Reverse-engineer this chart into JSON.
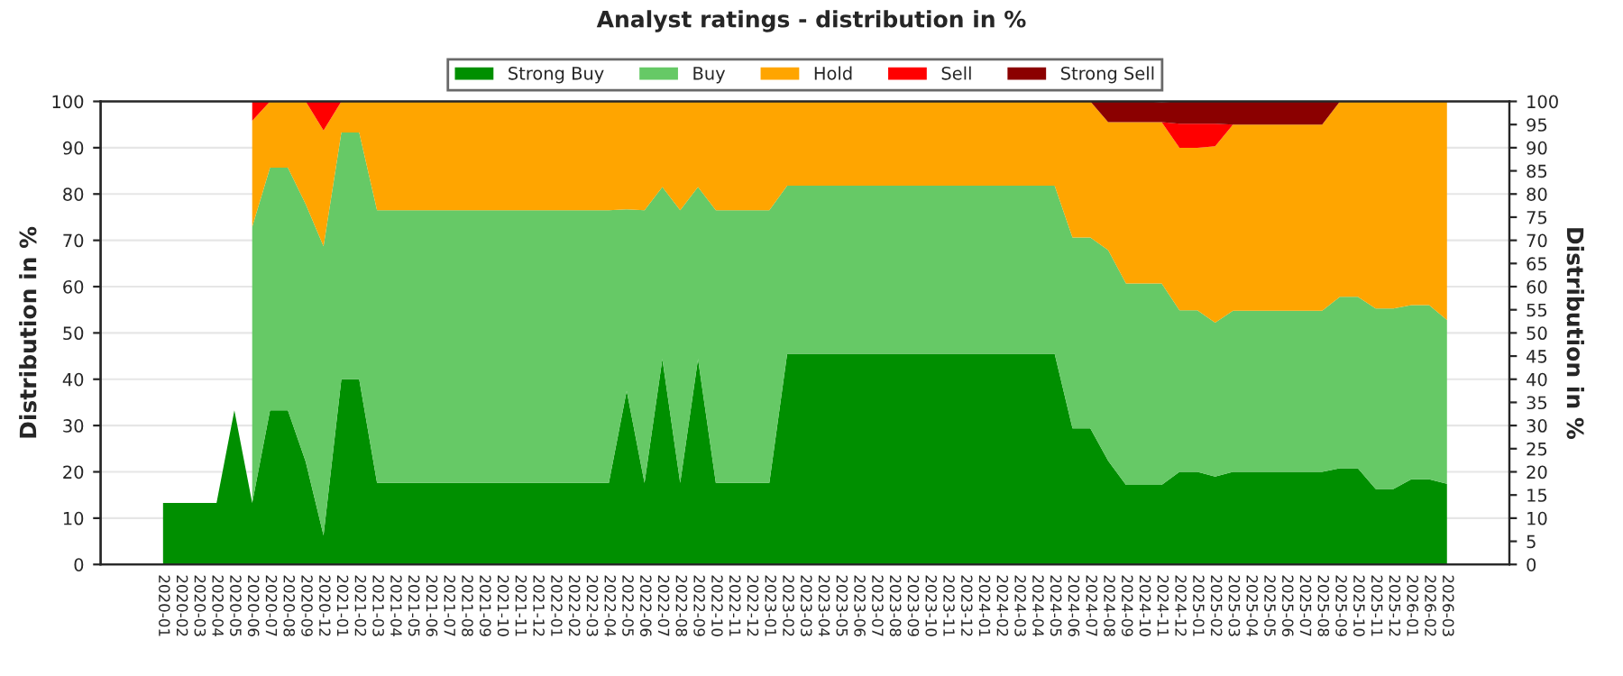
{
  "chart_data": {
    "type": "area",
    "stacked": true,
    "title": "Analyst ratings - distribution in %",
    "ylabel": "Distribution in %",
    "y2label": "Distribution in %",
    "categories": [
      "2020-01",
      "2020-02",
      "2020-03",
      "2020-04",
      "2020-05",
      "2020-06",
      "2020-07",
      "2020-08",
      "2020-09",
      "2020-12",
      "2021-01",
      "2021-02",
      "2021-03",
      "2021-04",
      "2021-05",
      "2021-06",
      "2021-07",
      "2021-08",
      "2021-09",
      "2021-10",
      "2021-11",
      "2021-12",
      "2022-01",
      "2022-02",
      "2022-03",
      "2022-04",
      "2022-05",
      "2022-06",
      "2022-07",
      "2022-08",
      "2022-09",
      "2022-10",
      "2022-11",
      "2022-12",
      "2023-01",
      "2023-02",
      "2023-03",
      "2023-04",
      "2023-05",
      "2023-06",
      "2023-07",
      "2023-08",
      "2023-09",
      "2023-10",
      "2023-11",
      "2023-12",
      "2024-01",
      "2024-02",
      "2024-03",
      "2024-04",
      "2024-05",
      "2024-06",
      "2024-07",
      "2024-08",
      "2024-09",
      "2024-10",
      "2024-11",
      "2024-12",
      "2025-01",
      "2025-02",
      "2025-03",
      "2025-04",
      "2025-05",
      "2025-06",
      "2025-07",
      "2025-08",
      "2025-09",
      "2025-10",
      "2025-11",
      "2025-12",
      "2026-01",
      "2026-02",
      "2026-03"
    ],
    "series": [
      {
        "name": "Strong Buy",
        "color": "#008f00",
        "values": [
          13.3,
          13.3,
          13.3,
          13.3,
          33.3,
          13.3,
          33.3,
          33.3,
          22.2,
          6.3,
          40,
          40,
          17.6,
          17.6,
          17.6,
          17.6,
          17.6,
          17.6,
          17.6,
          17.6,
          17.6,
          17.6,
          17.6,
          17.6,
          17.6,
          17.6,
          37.5,
          17.6,
          44.4,
          17.6,
          44.4,
          17.6,
          17.6,
          17.6,
          17.6,
          45.5,
          45.5,
          45.5,
          45.5,
          45.5,
          45.5,
          45.5,
          45.5,
          45.5,
          45.5,
          45.5,
          45.5,
          45.5,
          45.5,
          45.5,
          45.5,
          29.4,
          29.4,
          22.4,
          17.2,
          17.2,
          17.2,
          20,
          20,
          19,
          20,
          20,
          20,
          20,
          20,
          20,
          20.8,
          20.8,
          16.3,
          16.3,
          18.4,
          18.4,
          17.4
        ]
      },
      {
        "name": "Buy",
        "color": "#66c966",
        "values": [
          null,
          null,
          null,
          null,
          null,
          59.6,
          52.4,
          52.4,
          55.6,
          62.4,
          53.3,
          53.3,
          58.9,
          58.9,
          58.9,
          58.9,
          58.9,
          58.9,
          58.9,
          58.9,
          58.9,
          58.9,
          58.9,
          58.9,
          58.9,
          58.9,
          39.2,
          58.9,
          37.1,
          58.9,
          37.1,
          58.9,
          58.9,
          58.9,
          58.9,
          36.3,
          36.3,
          36.3,
          36.3,
          36.3,
          36.3,
          36.3,
          36.3,
          36.3,
          36.3,
          36.3,
          36.3,
          36.3,
          36.3,
          36.3,
          36.3,
          41.2,
          41.2,
          45.5,
          43.5,
          43.5,
          43.5,
          34.9,
          34.9,
          33.2,
          34.8,
          34.8,
          34.8,
          34.8,
          34.8,
          34.8,
          37.0,
          37.0,
          39.0,
          39.0,
          37.6,
          37.6,
          35.4
        ]
      },
      {
        "name": "Hold",
        "color": "#ffa500",
        "values": [
          null,
          null,
          null,
          null,
          null,
          22.9,
          14.3,
          14.3,
          22.2,
          25,
          6.7,
          6.7,
          23.5,
          23.5,
          23.5,
          23.5,
          23.5,
          23.5,
          23.5,
          23.5,
          23.5,
          23.5,
          23.5,
          23.5,
          23.5,
          23.5,
          23.3,
          23.5,
          18.5,
          23.5,
          18.5,
          23.5,
          23.5,
          23.5,
          23.5,
          18.2,
          18.2,
          18.2,
          18.2,
          18.2,
          18.2,
          18.2,
          18.2,
          18.2,
          18.2,
          18.2,
          18.2,
          18.2,
          18.2,
          18.2,
          18.2,
          29.4,
          29.4,
          27.6,
          34.8,
          34.8,
          34.8,
          35.1,
          35.1,
          38.1,
          40.2,
          40.2,
          40.2,
          40.2,
          40.2,
          40.2,
          42.2,
          42.2,
          44.7,
          44.7,
          44.0,
          44.0,
          47.2
        ]
      },
      {
        "name": "Sell",
        "color": "#ff0000",
        "values": [
          null,
          null,
          null,
          null,
          null,
          4.2,
          0,
          0,
          0,
          6.3,
          0,
          0,
          0,
          0,
          0,
          0,
          0,
          0,
          0,
          0,
          0,
          0,
          0,
          0,
          0,
          0,
          0,
          0,
          0,
          0,
          0,
          0,
          0,
          0,
          0,
          0,
          0,
          0,
          0,
          0,
          0,
          0,
          0,
          0,
          0,
          0,
          0,
          0,
          0,
          0,
          0,
          0,
          0,
          0,
          0,
          0,
          0,
          5.2,
          5.2,
          4.9,
          0,
          0,
          0,
          0,
          0,
          0,
          0,
          0,
          0,
          0,
          0,
          0,
          0
        ]
      },
      {
        "name": "Strong Sell",
        "color": "#8b0000",
        "values": [
          null,
          null,
          null,
          null,
          null,
          0,
          0,
          0,
          0,
          0,
          0,
          0,
          0,
          0,
          0,
          0,
          0,
          0,
          0,
          0,
          0,
          0,
          0,
          0,
          0,
          0,
          0,
          0,
          0,
          0,
          0,
          0,
          0,
          0,
          0,
          0,
          0,
          0,
          0,
          0,
          0,
          0,
          0,
          0,
          0,
          0,
          0,
          0,
          0,
          0,
          0,
          0,
          0,
          4.5,
          4.5,
          4.5,
          4.3,
          4.8,
          4.8,
          4.8,
          5,
          5,
          5,
          5,
          5,
          5,
          0,
          0,
          0,
          0,
          0,
          0,
          0
        ]
      }
    ],
    "ylim": [
      0,
      100
    ],
    "yticks": [
      0,
      10,
      20,
      30,
      40,
      50,
      60,
      70,
      80,
      90,
      100
    ],
    "y2lim": [
      0,
      100
    ],
    "y2ticks": [
      0,
      5,
      10,
      15,
      20,
      25,
      30,
      35,
      40,
      45,
      50,
      55,
      60,
      65,
      70,
      75,
      80,
      85,
      90,
      95,
      100
    ],
    "grid": "y",
    "legend": "top"
  }
}
